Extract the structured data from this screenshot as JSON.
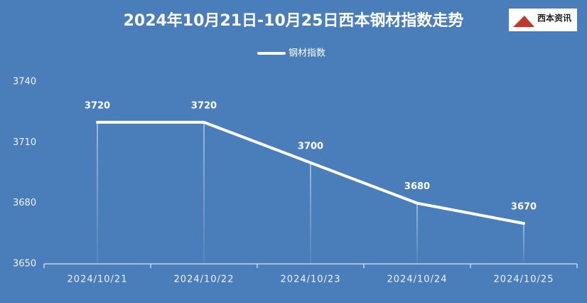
{
  "chart_data": {
    "type": "line",
    "title": "2024年10月21日-10月25日西本钢材指数走势",
    "logo_text": "西本资讯",
    "categories": [
      "2024/10/21",
      "2024/10/22",
      "2024/10/23",
      "2024/10/24",
      "2024/10/25"
    ],
    "series": [
      {
        "name": "钢材指数",
        "color": "#ffffff",
        "values": [
          3720,
          3720,
          3700,
          3680,
          3670
        ]
      }
    ],
    "ylim": [
      3650,
      3740
    ],
    "yticks": [
      3650,
      3680,
      3710,
      3740
    ],
    "grid": false,
    "legend": "top"
  }
}
